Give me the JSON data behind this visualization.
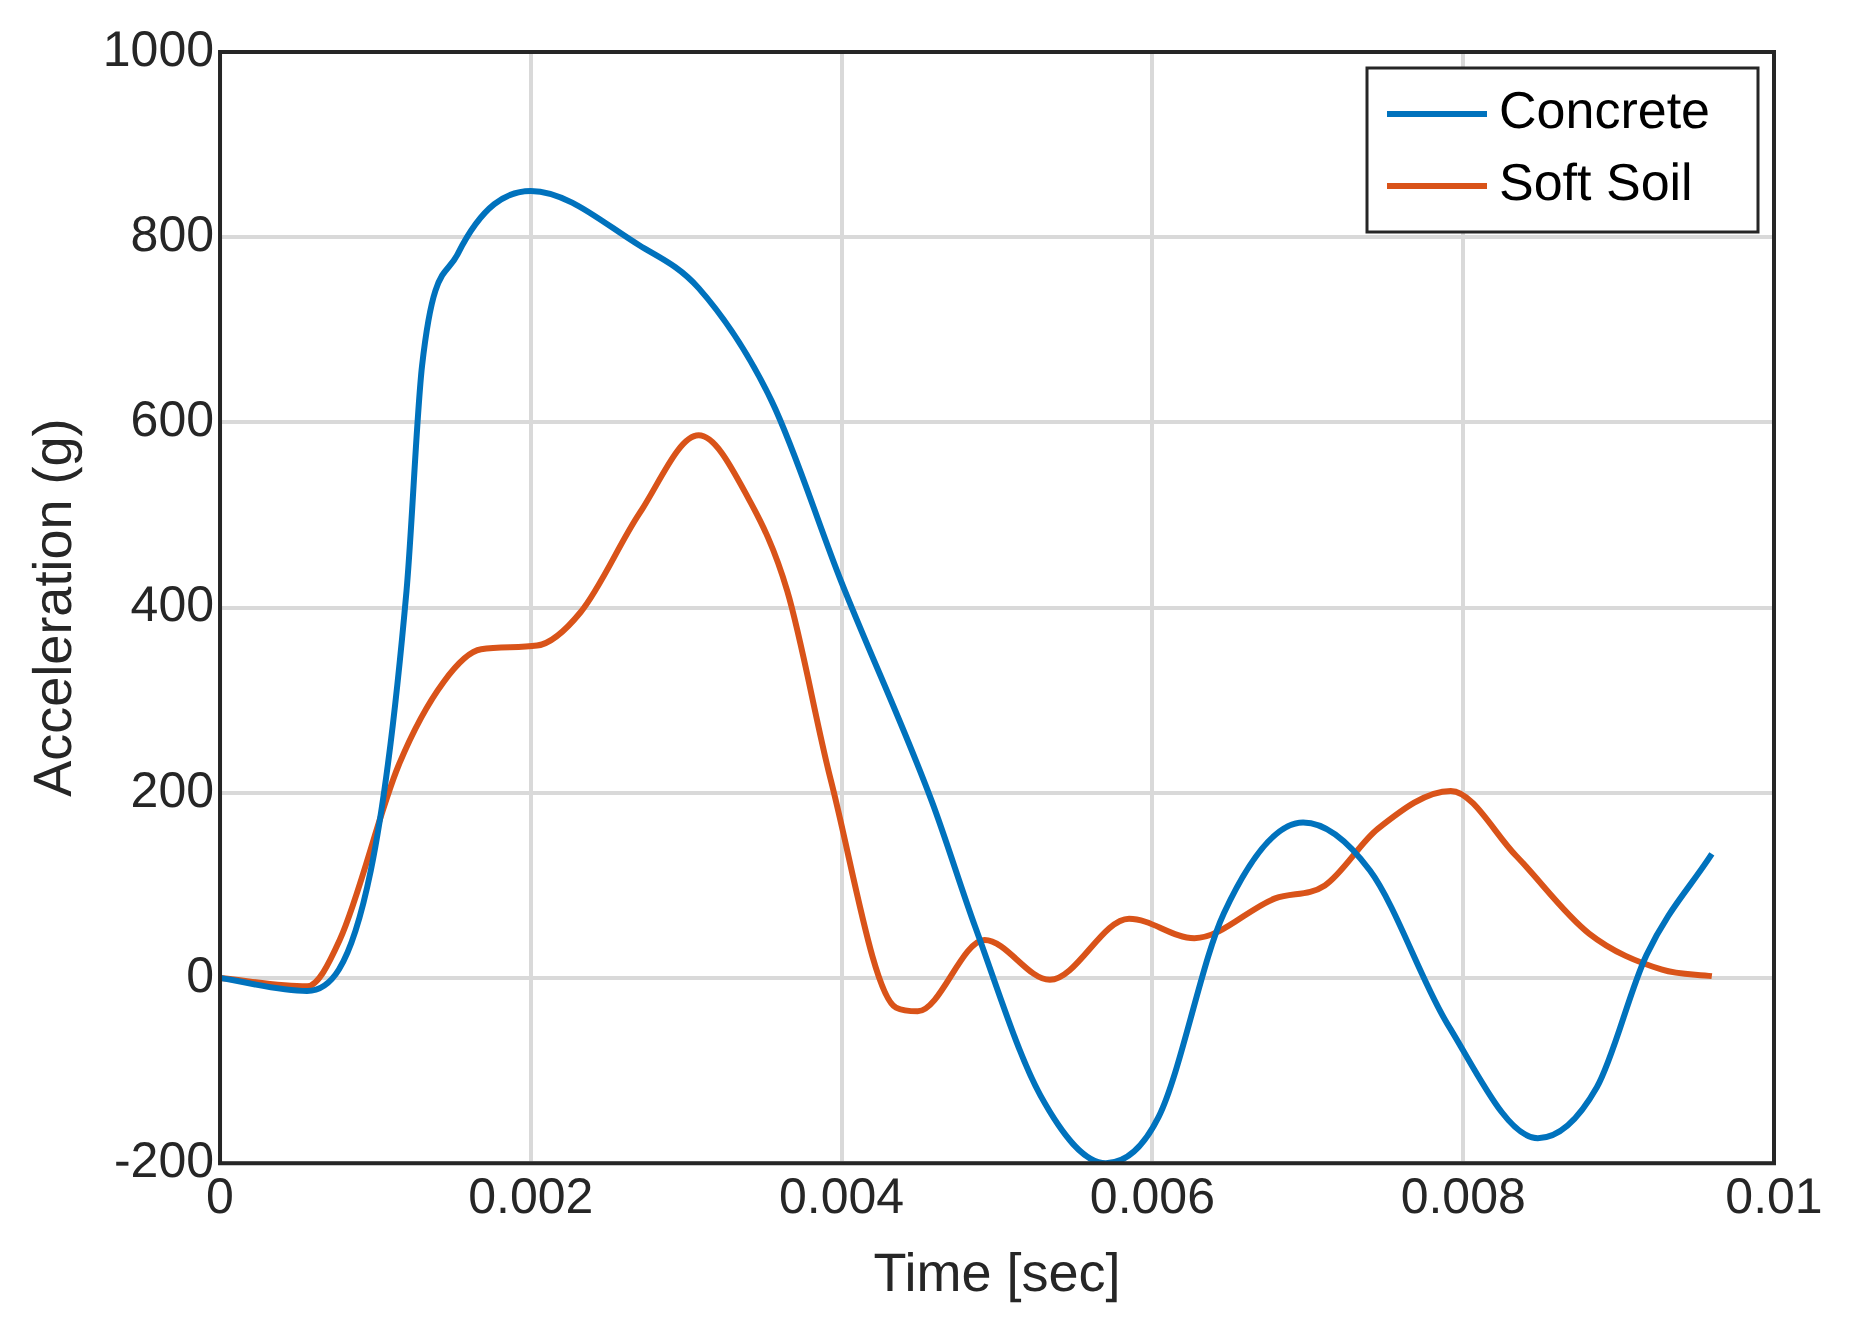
{
  "chart_data": {
    "type": "line",
    "xlabel": "Time [sec]",
    "ylabel": "Acceleration (g)",
    "xlim": [
      0,
      0.01
    ],
    "xticks": [
      0,
      0.002,
      0.004,
      0.006,
      0.008,
      0.01
    ],
    "ylim": [
      -200,
      1000
    ],
    "yticks": [
      -200,
      0,
      200,
      400,
      600,
      800,
      1000
    ],
    "grid": true,
    "legend": "top right",
    "marker": "none",
    "line_style": "solid",
    "series": [
      {
        "name": "Concrete",
        "color": "#0072bd",
        "x": [
          0,
          0.00056,
          0.00097,
          0.0012,
          0.0013,
          0.00153,
          0.002,
          0.0027,
          0.00308,
          0.00355,
          0.004,
          0.00458,
          0.00486,
          0.00528,
          0.0057,
          0.00604,
          0.00646,
          0.00697,
          0.0074,
          0.0079,
          0.00848,
          0.00886,
          0.00918,
          0.0096
        ],
        "values": [
          0,
          -14,
          116,
          418,
          661,
          782,
          850,
          791,
          745,
          623,
          427,
          191,
          55,
          -127,
          -200,
          -150,
          70,
          168,
          116,
          -50,
          -173,
          -118,
          25,
          134
        ]
      },
      {
        "name": "Soft Soil",
        "color": "#d95319",
        "x": [
          0,
          0.00056,
          0.00077,
          0.00115,
          0.00144,
          0.00168,
          0.00204,
          0.00232,
          0.0027,
          0.00308,
          0.0034,
          0.00365,
          0.00393,
          0.00435,
          0.00449,
          0.00492,
          0.00534,
          0.00585,
          0.00627,
          0.00679,
          0.00711,
          0.00745,
          0.00792,
          0.00834,
          0.00881,
          0.00928,
          0.0096
        ],
        "values": [
          0,
          -9,
          41,
          230,
          320,
          355,
          359,
          395,
          502,
          586,
          518,
          418,
          214,
          -32,
          -36,
          41,
          -2,
          64,
          43,
          86,
          100,
          161,
          202,
          132,
          48,
          9,
          2
        ]
      }
    ]
  }
}
